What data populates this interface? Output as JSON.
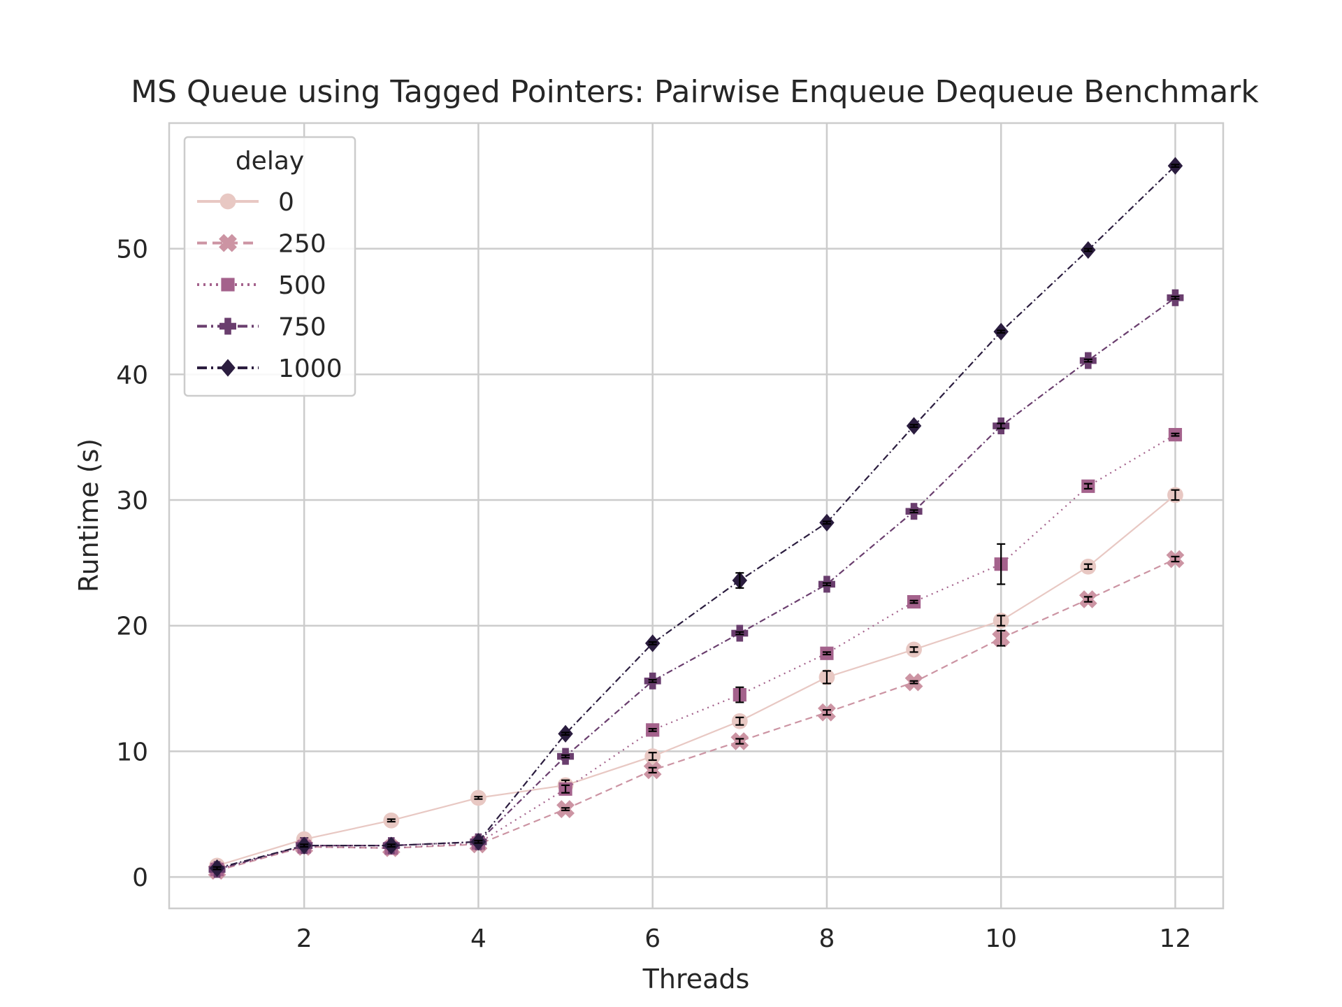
{
  "chart_data": {
    "type": "line",
    "title": "MS Queue using Tagged Pointers: Pairwise Enqueue Dequeue Benchmark",
    "xlabel": "Threads",
    "ylabel": "Runtime (s)",
    "xlim": [
      0.45,
      12.55
    ],
    "ylim": [
      -2.5,
      60
    ],
    "xticks": [
      2,
      4,
      6,
      8,
      10,
      12
    ],
    "yticks": [
      0,
      10,
      20,
      30,
      40,
      50
    ],
    "grid": true,
    "legend": {
      "title": "delay",
      "position": "top-left"
    },
    "x": [
      1,
      2,
      3,
      4,
      5,
      6,
      7,
      8,
      9,
      10,
      11,
      12
    ],
    "series": [
      {
        "name": "0",
        "color": "#e8c8c3",
        "dash": "solid",
        "marker": "circle",
        "values": [
          0.9,
          3.0,
          4.5,
          6.3,
          7.3,
          9.6,
          12.4,
          15.9,
          18.1,
          20.4,
          24.7,
          30.4
        ],
        "err": [
          0.1,
          0.1,
          0.1,
          0.1,
          0.4,
          0.3,
          0.3,
          0.5,
          0.2,
          0.4,
          0.2,
          0.4
        ]
      },
      {
        "name": "250",
        "color": "#cc94a3",
        "dash": "dashed",
        "marker": "x",
        "values": [
          0.5,
          2.4,
          2.3,
          2.6,
          5.4,
          8.5,
          10.8,
          13.1,
          15.5,
          19.0,
          22.1,
          25.3
        ],
        "err": [
          0.1,
          0.1,
          0.1,
          0.1,
          0.1,
          0.2,
          0.2,
          0.2,
          0.1,
          0.6,
          0.2,
          0.2
        ]
      },
      {
        "name": "500",
        "color": "#a4628c",
        "dash": "dotted",
        "marker": "square",
        "values": [
          0.6,
          2.4,
          2.3,
          2.7,
          7.0,
          11.7,
          14.5,
          17.8,
          21.9,
          24.9,
          31.1,
          35.2
        ],
        "err": [
          0.1,
          0.1,
          0.1,
          0.1,
          0.3,
          0.1,
          0.6,
          0.1,
          0.1,
          1.6,
          0.2,
          0.1
        ]
      },
      {
        "name": "750",
        "color": "#6a3e6e",
        "dash": "dashdot-long",
        "marker": "plus",
        "values": [
          0.6,
          2.5,
          2.5,
          2.8,
          9.6,
          15.6,
          19.4,
          23.3,
          29.1,
          35.9,
          41.1,
          46.1
        ],
        "err": [
          0.1,
          0.1,
          0.1,
          0.1,
          0.1,
          0.1,
          0.1,
          0.1,
          0.1,
          0.2,
          0.1,
          0.1
        ]
      },
      {
        "name": "1000",
        "color": "#2b1d3f",
        "dash": "dashdot",
        "marker": "diamond",
        "values": [
          0.7,
          2.5,
          2.5,
          2.8,
          11.4,
          18.6,
          23.6,
          28.2,
          35.9,
          43.4,
          49.9,
          56.6
        ],
        "err": [
          0.1,
          0.1,
          0.1,
          0.1,
          0.1,
          0.1,
          0.6,
          0.1,
          0.1,
          0.1,
          0.1,
          0.1
        ]
      }
    ]
  }
}
